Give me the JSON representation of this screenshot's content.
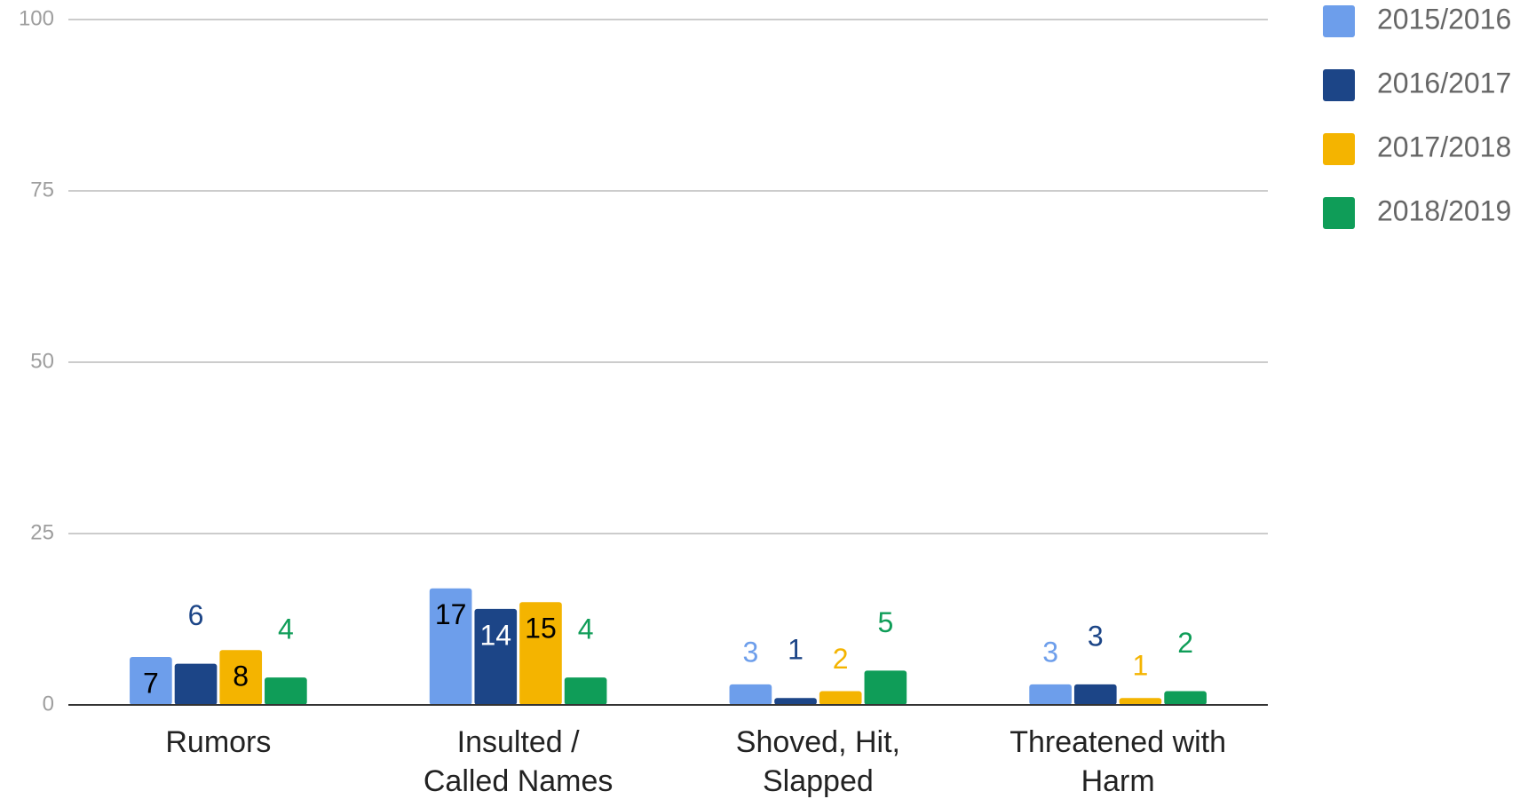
{
  "chart_data": {
    "type": "bar",
    "categories": [
      "Rumors",
      "Insulted / Called Names",
      "Shoved, Hit, Slapped",
      "Threatened with Harm"
    ],
    "series": [
      {
        "name": "2015/2016",
        "color": "#6d9eeb",
        "values": [
          7,
          17,
          3,
          3
        ]
      },
      {
        "name": "2016/2017",
        "color": "#1c4587",
        "values": [
          6,
          14,
          1,
          3
        ]
      },
      {
        "name": "2017/2018",
        "color": "#f4b400",
        "values": [
          8,
          15,
          2,
          1
        ]
      },
      {
        "name": "2018/2019",
        "color": "#0f9d58",
        "values": [
          4,
          4,
          5,
          2
        ]
      }
    ],
    "ylim": [
      0,
      100
    ],
    "yticks": [
      0,
      25,
      50,
      75,
      100
    ],
    "grid": true,
    "legend": "right"
  }
}
